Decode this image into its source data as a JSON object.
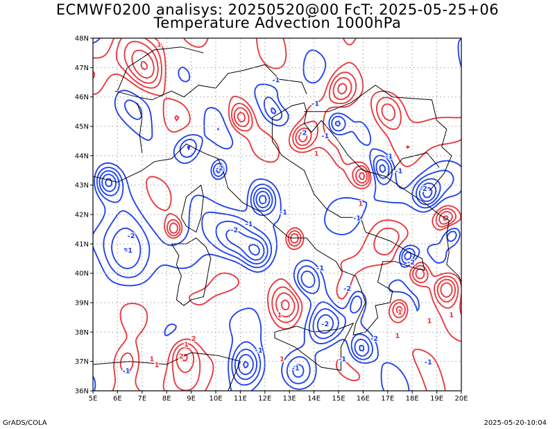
{
  "header": {
    "title_line1": "ECMWF0200 analisys: 20250520@00 FcT: 2025-05-25+06",
    "title_line2": "Temperature Advection 1000hPa"
  },
  "footer": {
    "left": "GrADS/COLA",
    "right": "2025-05-20-10:04"
  },
  "map": {
    "lon_labels": [
      "5E",
      "6E",
      "7E",
      "8E",
      "9E",
      "10E",
      "11E",
      "12E",
      "13E",
      "14E",
      "15E",
      "16E",
      "17E",
      "18E",
      "19E",
      "20E"
    ],
    "lat_labels": [
      "48N",
      "47N",
      "46N",
      "45N",
      "44N",
      "43N",
      "42N",
      "41N",
      "40N",
      "39N",
      "38N",
      "37N",
      "36N"
    ],
    "colors": {
      "warm_advection": "#e8393f",
      "cold_advection": "#2244ee",
      "borders": "#000000",
      "grid": "#999999"
    },
    "contour_labels": [
      {
        "text": "-1",
        "lon": 13.9,
        "lat": 45.7
      },
      {
        "text": "-2",
        "lon": 10.0,
        "lat": 43.5
      },
      {
        "text": "-2",
        "lon": 6.4,
        "lat": 41.2
      },
      {
        "text": "-1",
        "lon": 6.3,
        "lat": 40.7
      },
      {
        "text": "-1",
        "lon": 11.2,
        "lat": 41.6
      },
      {
        "text": "-2",
        "lon": 10.6,
        "lat": 41.4
      },
      {
        "text": "-1",
        "lon": 12.6,
        "lat": 42.0
      },
      {
        "text": "-1",
        "lon": 14.3,
        "lat": 44.6
      },
      {
        "text": "-2",
        "lon": 13.4,
        "lat": 44.7
      },
      {
        "text": "-1",
        "lon": 16.9,
        "lat": 43.9
      },
      {
        "text": "-1",
        "lon": 17.3,
        "lat": 43.4
      },
      {
        "text": "-2",
        "lon": 18.3,
        "lat": 42.8
      },
      {
        "text": "-2",
        "lon": 17.8,
        "lat": 40.3
      },
      {
        "text": "-2",
        "lon": 14.3,
        "lat": 38.2
      },
      {
        "text": "-2",
        "lon": 15.2,
        "lat": 39.4
      },
      {
        "text": "-1",
        "lon": 13.1,
        "lat": 36.7
      },
      {
        "text": "-1",
        "lon": 11.6,
        "lat": 37.3
      },
      {
        "text": "1",
        "lon": 8.7,
        "lat": 37.5
      },
      {
        "text": "2",
        "lon": 9.0,
        "lat": 37.7
      },
      {
        "text": "2",
        "lon": 8.5,
        "lat": 37.1
      },
      {
        "text": "1",
        "lon": 7.3,
        "lat": 37.0
      },
      {
        "text": "1",
        "lon": 7.5,
        "lat": 36.8
      },
      {
        "text": "-1",
        "lon": 6.2,
        "lat": 36.6
      },
      {
        "text": "1",
        "lon": 7.6,
        "lat": 47.7
      },
      {
        "text": "-1",
        "lon": 12.3,
        "lat": 46.5
      },
      {
        "text": "1",
        "lon": 14.0,
        "lat": 44.0
      },
      {
        "text": "1",
        "lon": 12.5,
        "lat": 38.5
      },
      {
        "text": "1",
        "lon": 17.3,
        "lat": 37.8
      },
      {
        "text": "1",
        "lon": 18.6,
        "lat": 38.3
      },
      {
        "text": "1",
        "lon": 17.4,
        "lat": 38.6
      },
      {
        "text": "-1",
        "lon": 15.0,
        "lat": 37.0
      },
      {
        "text": "1",
        "lon": 15.8,
        "lat": 42.3
      },
      {
        "text": "-1",
        "lon": 15.6,
        "lat": 41.8
      },
      {
        "text": "-1",
        "lon": 14.1,
        "lat": 40.1
      },
      {
        "text": "-2",
        "lon": 16.3,
        "lat": 37.7
      },
      {
        "text": "1",
        "lon": 19.5,
        "lat": 38.5
      },
      {
        "text": "1",
        "lon": 12.6,
        "lat": 37.0
      },
      {
        "text": "-1",
        "lon": 18.5,
        "lat": 36.9
      }
    ],
    "cold_centers": [
      {
        "lon": 8.9,
        "lat": 44.3,
        "r": 0.55
      },
      {
        "lon": 14.9,
        "lat": 45.1,
        "r": 0.45
      },
      {
        "lon": 11.9,
        "lat": 42.5,
        "r": 0.45
      },
      {
        "lon": 10.1,
        "lat": 43.5,
        "r": 0.35
      },
      {
        "lon": 6.4,
        "lat": 40.8,
        "r": 1.1
      },
      {
        "lon": 10.8,
        "lat": 41.2,
        "r": 0.9
      },
      {
        "lon": 11.7,
        "lat": 40.7,
        "r": 0.6
      },
      {
        "lon": 13.7,
        "lat": 39.8,
        "r": 0.6
      },
      {
        "lon": 14.4,
        "lat": 38.2,
        "r": 0.7
      },
      {
        "lon": 15.6,
        "lat": 39.1,
        "r": 0.45
      },
      {
        "lon": 16.8,
        "lat": 43.6,
        "r": 0.5
      },
      {
        "lon": 18.6,
        "lat": 42.7,
        "r": 0.5
      },
      {
        "lon": 17.8,
        "lat": 40.6,
        "r": 0.4
      },
      {
        "lon": 11.2,
        "lat": 36.9,
        "r": 0.6
      },
      {
        "lon": 13.3,
        "lat": 36.6,
        "r": 0.7
      },
      {
        "lon": 15.9,
        "lat": 37.4,
        "r": 0.5
      },
      {
        "lon": 19.6,
        "lat": 41.4,
        "r": 0.4
      },
      {
        "lon": 5.6,
        "lat": 43.1,
        "r": 0.5
      },
      {
        "lon": 12.5,
        "lat": 45.6,
        "r": 0.4
      }
    ],
    "warm_centers": [
      {
        "lon": 6.4,
        "lat": 37.0,
        "r": 0.7
      },
      {
        "lon": 8.7,
        "lat": 37.3,
        "r": 0.6
      },
      {
        "lon": 12.8,
        "lat": 38.9,
        "r": 0.7
      },
      {
        "lon": 15.3,
        "lat": 39.2,
        "r": 0.5
      },
      {
        "lon": 17.5,
        "lat": 38.8,
        "r": 0.4
      },
      {
        "lon": 18.3,
        "lat": 40.0,
        "r": 0.45
      },
      {
        "lon": 19.4,
        "lat": 39.5,
        "r": 0.5
      },
      {
        "lon": 16.0,
        "lat": 43.3,
        "r": 0.4
      },
      {
        "lon": 19.4,
        "lat": 41.8,
        "r": 0.45
      },
      {
        "lon": 13.5,
        "lat": 44.6,
        "r": 0.45
      },
      {
        "lon": 12.6,
        "lat": 45.7,
        "r": 0.4
      },
      {
        "lon": 8.3,
        "lat": 41.5,
        "r": 0.35
      },
      {
        "lon": 7.2,
        "lat": 46.8,
        "r": 0.8
      },
      {
        "lon": 15.1,
        "lat": 46.3,
        "r": 0.6
      },
      {
        "lon": 11.0,
        "lat": 45.3,
        "r": 0.5
      },
      {
        "lon": 17.0,
        "lat": 45.5,
        "r": 0.7
      },
      {
        "lon": 13.2,
        "lat": 41.2,
        "r": 0.35
      }
    ]
  }
}
